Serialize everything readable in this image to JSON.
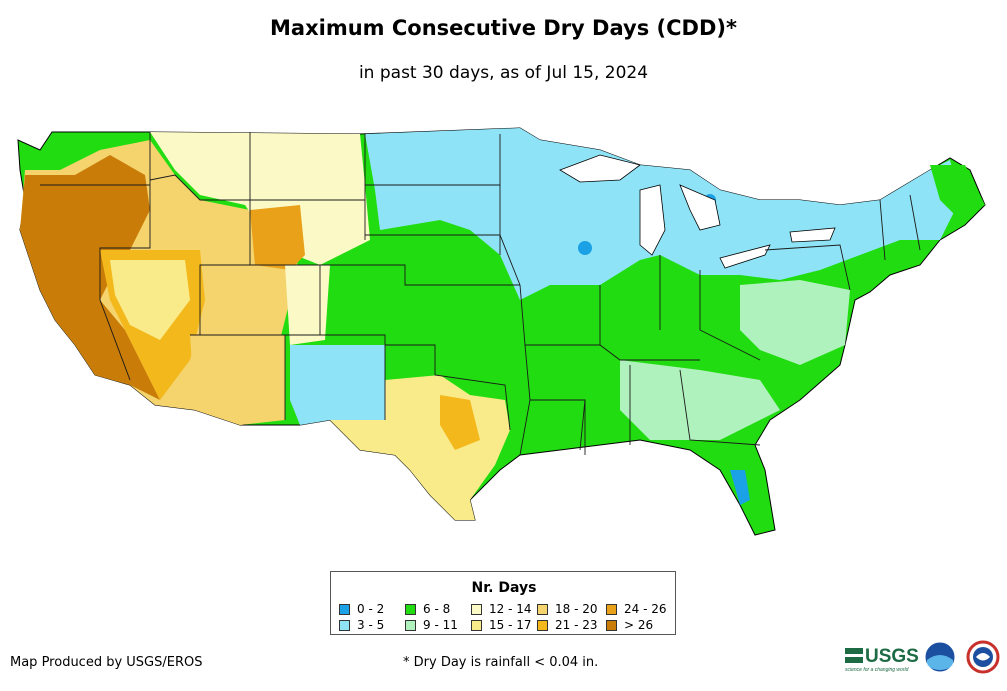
{
  "header": {
    "title": "Maximum Consecutive Dry Days (CDD)*",
    "subtitle": "in past 30 days, as of Jul 15, 2024"
  },
  "legend": {
    "title": "Nr. Days",
    "items": [
      {
        "label": "0 - 2",
        "color": "#1aa1e6"
      },
      {
        "label": "3 - 5",
        "color": "#8fe3f6"
      },
      {
        "label": "6 - 8",
        "color": "#20dc10"
      },
      {
        "label": "9 - 11",
        "color": "#b0f2bd"
      },
      {
        "label": "12 - 14",
        "color": "#fbf9c6"
      },
      {
        "label": "15 - 17",
        "color": "#f9eb8a"
      },
      {
        "label": "18 - 20",
        "color": "#f5d36d"
      },
      {
        "label": "21 - 23",
        "color": "#f3b81c"
      },
      {
        "label": "24 - 26",
        "color": "#e9a119"
      },
      {
        "label": "> 26",
        "color": "#c97c08"
      }
    ]
  },
  "footer": {
    "credit": "Map Produced by USGS/EROS",
    "footnote": "* Dry Day is rainfall < 0.04 in.",
    "usgs_logo": "USGS",
    "usgs_tagline": "science for a changing world"
  },
  "colors": {
    "state_border": "#1a1a1a"
  }
}
